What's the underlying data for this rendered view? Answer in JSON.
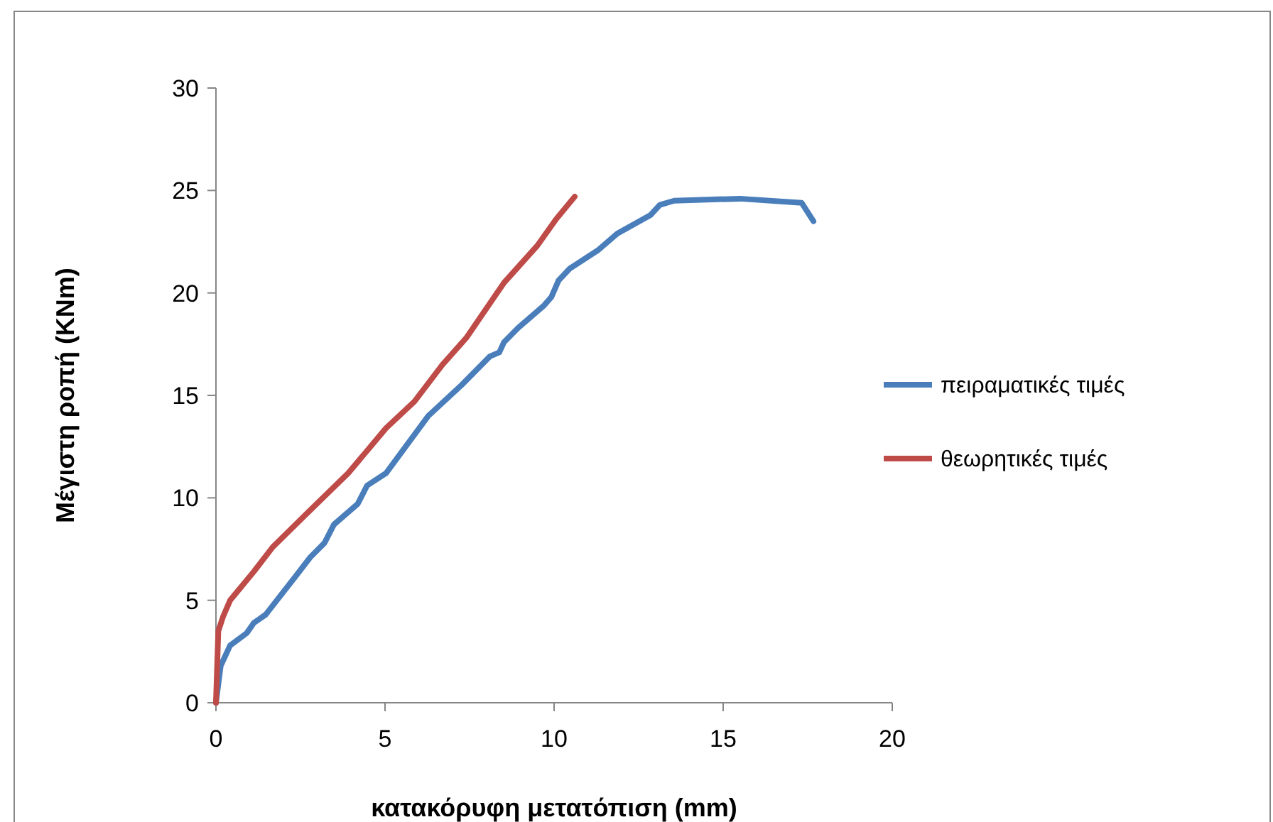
{
  "chart_data": {
    "type": "line",
    "xlabel": "κατακόρυφη μετατόπιση (mm)",
    "ylabel": "Μέγιστη ροπή (KNm)",
    "xlim": [
      0,
      20
    ],
    "xticks": [
      0,
      5,
      10,
      15,
      20
    ],
    "ylim": [
      0,
      30
    ],
    "yticks": [
      0,
      5,
      10,
      15,
      20,
      25,
      30
    ],
    "grid": false,
    "legend": "right",
    "marker": "none",
    "line_style": "solid",
    "series": [
      {
        "name": "πειραματικές τιμές",
        "color": "#4a7ebb",
        "x": [
          0,
          0.14,
          0.42,
          0.91,
          1.12,
          1.47,
          2.37,
          2.79,
          3.21,
          3.49,
          4.19,
          4.47,
          5.03,
          6.28,
          7.26,
          8.1,
          8.38,
          8.52,
          8.94,
          9.71,
          9.92,
          10.13,
          10.47,
          11.31,
          11.87,
          12.85,
          13.13,
          13.55,
          15.5,
          17.32,
          17.67
        ],
        "values": [
          0,
          1.8,
          2.8,
          3.4,
          3.9,
          4.3,
          6.2,
          7.1,
          7.8,
          8.7,
          9.7,
          10.6,
          11.2,
          14,
          15.5,
          16.9,
          17.1,
          17.6,
          18.3,
          19.4,
          19.8,
          20.6,
          21.2,
          22.1,
          22.9,
          23.8,
          24.3,
          24.5,
          24.6,
          24.4,
          23.5
        ]
      },
      {
        "name": "θεωρητικές τιμές",
        "color": "#be4b48",
        "x": [
          0,
          0.07,
          0.21,
          0.42,
          1.12,
          1.68,
          2.79,
          3.91,
          5.03,
          5.87,
          6.7,
          7.4,
          8.52,
          9.5,
          10.06,
          10.61
        ],
        "values": [
          0,
          3.5,
          4.2,
          5,
          6.4,
          7.6,
          9.4,
          11.2,
          13.4,
          14.7,
          16.5,
          17.8,
          20.5,
          22.3,
          23.6,
          24.7
        ]
      }
    ]
  }
}
